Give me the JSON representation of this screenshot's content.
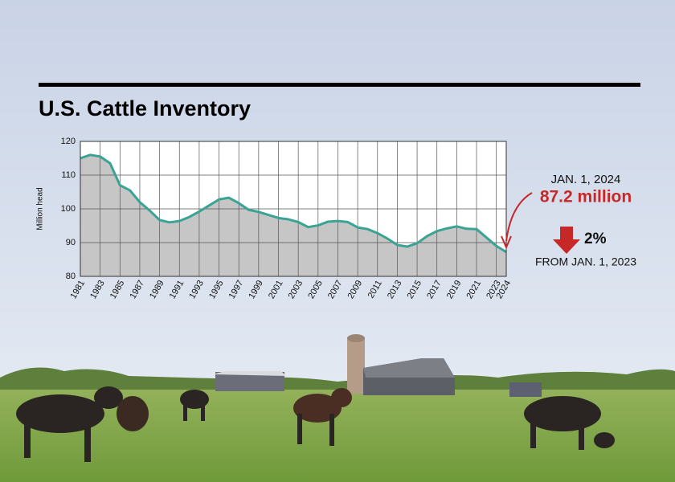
{
  "chart_data": {
    "type": "area",
    "title": "U.S. Cattle Inventory",
    "y_label": "Million head",
    "x": [
      1981,
      1982,
      1983,
      1984,
      1985,
      1986,
      1987,
      1988,
      1989,
      1990,
      1991,
      1992,
      1993,
      1994,
      1995,
      1996,
      1997,
      1998,
      1999,
      2000,
      2001,
      2002,
      2003,
      2004,
      2005,
      2006,
      2007,
      2008,
      2009,
      2010,
      2011,
      2012,
      2013,
      2014,
      2015,
      2016,
      2017,
      2018,
      2019,
      2020,
      2021,
      2022,
      2023,
      2024
    ],
    "values": [
      115,
      116,
      115.5,
      113.5,
      107,
      105.5,
      102,
      99.5,
      96.7,
      96,
      96.4,
      97.6,
      99.2,
      101,
      102.8,
      103.3,
      101.7,
      99.7,
      99.1,
      98.2,
      97.3,
      96.9,
      96.1,
      94.6,
      95.1,
      96.2,
      96.4,
      96.1,
      94.5,
      94,
      92.8,
      91.2,
      89.3,
      88.8,
      89.8,
      91.9,
      93.4,
      94.2,
      94.8,
      94.1,
      94,
      91.5,
      89,
      87.2
    ],
    "color": "#3aa394",
    "fill": "#c6c6c6",
    "xlim": [
      1981,
      2024
    ],
    "xticks": [
      1981,
      1983,
      1985,
      1987,
      1989,
      1991,
      1993,
      1995,
      1997,
      1999,
      2001,
      2003,
      2005,
      2007,
      2009,
      2011,
      2013,
      2015,
      2017,
      2019,
      2021,
      2023,
      2024
    ],
    "ylim": [
      80,
      120
    ],
    "yticks": [
      80,
      90,
      100,
      110,
      120
    ],
    "grid": true,
    "annotations": {
      "date": "JAN. 1, 2024",
      "latest": "87.2 million",
      "change": "2%",
      "since": "FROM JAN. 1, 2023"
    }
  }
}
